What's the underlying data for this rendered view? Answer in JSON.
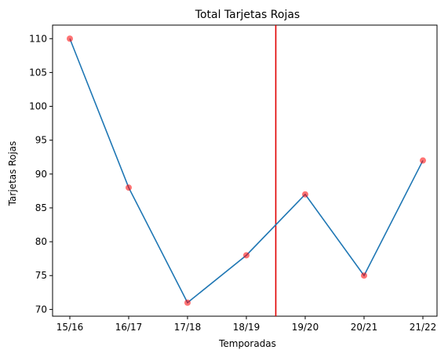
{
  "chart_data": {
    "type": "line",
    "title": "Total Tarjetas Rojas",
    "xlabel": "Temporadas",
    "ylabel": "Tarjetas Rojas",
    "categories": [
      "15/16",
      "16/17",
      "17/18",
      "18/19",
      "19/20",
      "20/21",
      "21/22"
    ],
    "series": [
      {
        "values": [
          110,
          88,
          71,
          78,
          87,
          75,
          92
        ]
      }
    ],
    "ylim": [
      69,
      112
    ],
    "yticks": [
      70,
      75,
      80,
      85,
      90,
      95,
      100,
      105,
      110
    ],
    "vertical_line_at_category_position": 3.5,
    "grid": false,
    "legend": "none",
    "colors": {
      "line": "#1f77b4",
      "markers": "#ff0000",
      "vline": "#e00000"
    }
  }
}
